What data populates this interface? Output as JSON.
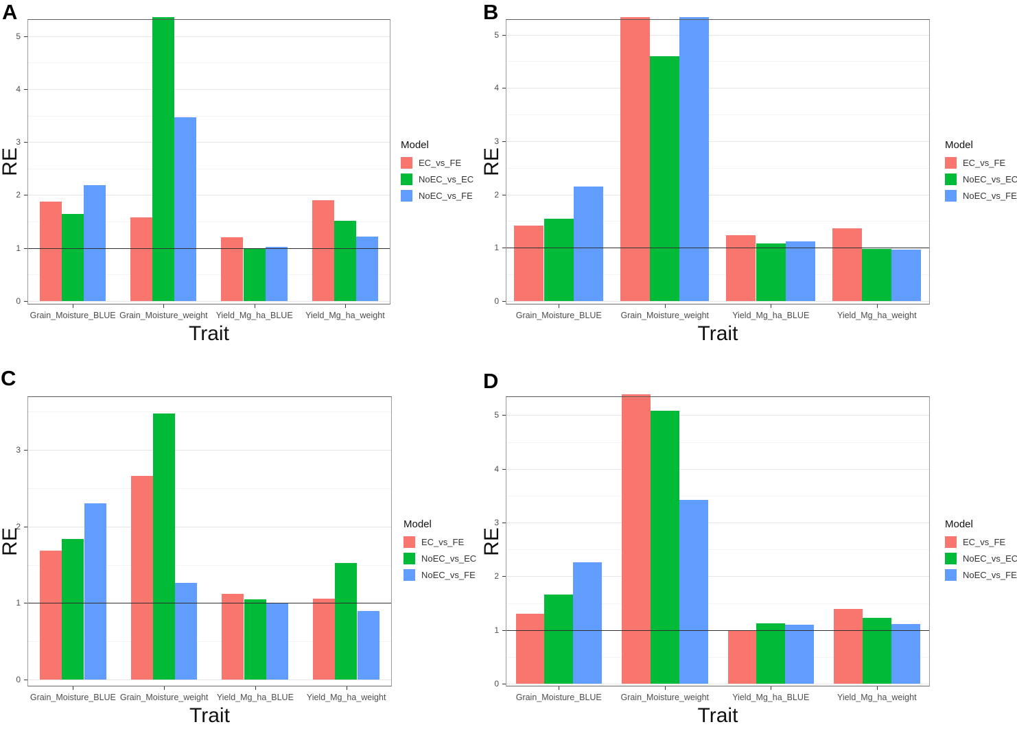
{
  "figure_type": "four-panel grouped bar figure",
  "panel_letters": [
    "A",
    "B",
    "C",
    "D"
  ],
  "categories": [
    "Grain_Moisture_BLUE",
    "Grain_Moisture_weight",
    "Yield_Mg_ha_BLUE",
    "Yield_Mg_ha_weight"
  ],
  "x_axis_title": "Trait",
  "y_axis_title": "RE",
  "legend_title": "Model",
  "reference_line_y": 1,
  "series_colors": {
    "EC_vs_FE": "#F8766D",
    "NoEC_vs_EC": "#00BA38",
    "NoEC_vs_FE": "#619CFF"
  },
  "chart_data": [
    {
      "type": "bar",
      "panel_label": "A",
      "xlabel": "Trait",
      "ylabel": "RE",
      "legend_title": "Model",
      "legend_position": "right",
      "grid": true,
      "ref_line": 1,
      "categories": [
        "Grain_Moisture_BLUE",
        "Grain_Moisture_weight",
        "Yield_Mg_ha_BLUE",
        "Yield_Mg_ha_weight"
      ],
      "yticks": [
        0,
        1,
        2,
        3,
        4,
        5
      ],
      "ylim": [
        0,
        5.32
      ],
      "series": [
        {
          "name": "EC_vs_FE",
          "color": "#F8766D",
          "values": [
            1.88,
            1.58,
            1.21,
            1.9
          ],
          "clipped": [
            false,
            false,
            false,
            false
          ]
        },
        {
          "name": "NoEC_vs_EC",
          "color": "#00BA38",
          "values": [
            1.64,
            5.5,
            1.0,
            1.52
          ],
          "clipped": [
            false,
            true,
            false,
            false
          ]
        },
        {
          "name": "NoEC_vs_FE",
          "color": "#619CFF",
          "values": [
            2.19,
            3.47,
            1.02,
            1.22
          ],
          "clipped": [
            false,
            false,
            false,
            false
          ]
        }
      ]
    },
    {
      "type": "bar",
      "panel_label": "B",
      "xlabel": "Trait",
      "ylabel": "RE",
      "legend_title": "Model",
      "legend_position": "right",
      "grid": true,
      "ref_line": 1,
      "categories": [
        "Grain_Moisture_BLUE",
        "Grain_Moisture_weight",
        "Yield_Mg_ha_BLUE",
        "Yield_Mg_ha_weight"
      ],
      "yticks": [
        0,
        1,
        2,
        3,
        4,
        5
      ],
      "ylim": [
        0,
        5.29
      ],
      "series": [
        {
          "name": "EC_vs_FE",
          "color": "#F8766D",
          "values": [
            1.42,
            5.5,
            1.23,
            1.36
          ],
          "clipped": [
            false,
            true,
            false,
            false
          ]
        },
        {
          "name": "NoEC_vs_EC",
          "color": "#00BA38",
          "values": [
            1.55,
            4.6,
            1.08,
            0.98
          ],
          "clipped": [
            false,
            false,
            false,
            false
          ]
        },
        {
          "name": "NoEC_vs_FE",
          "color": "#619CFF",
          "values": [
            2.15,
            5.5,
            1.12,
            0.96
          ],
          "clipped": [
            false,
            true,
            false,
            false
          ]
        }
      ]
    },
    {
      "type": "bar",
      "panel_label": "C",
      "xlabel": "Trait",
      "ylabel": "RE",
      "legend_title": "Model",
      "legend_position": "right",
      "grid": true,
      "ref_line": 1,
      "categories": [
        "Grain_Moisture_BLUE",
        "Grain_Moisture_weight",
        "Yield_Mg_ha_BLUE",
        "Yield_Mg_ha_weight"
      ],
      "yticks": [
        0,
        1,
        2,
        3
      ],
      "ylim": [
        0,
        3.7
      ],
      "series": [
        {
          "name": "EC_vs_FE",
          "color": "#F8766D",
          "values": [
            1.68,
            2.66,
            1.12,
            1.06
          ],
          "clipped": [
            false,
            false,
            false,
            false
          ]
        },
        {
          "name": "NoEC_vs_EC",
          "color": "#00BA38",
          "values": [
            1.84,
            3.48,
            1.05,
            1.52
          ],
          "clipped": [
            false,
            false,
            false,
            false
          ]
        },
        {
          "name": "NoEC_vs_FE",
          "color": "#619CFF",
          "values": [
            2.3,
            1.26,
            1.0,
            0.9
          ],
          "clipped": [
            false,
            false,
            false,
            false
          ]
        }
      ]
    },
    {
      "type": "bar",
      "panel_label": "D",
      "xlabel": "Trait",
      "ylabel": "RE",
      "legend_title": "Model",
      "legend_position": "right",
      "grid": true,
      "ref_line": 1,
      "categories": [
        "Grain_Moisture_BLUE",
        "Grain_Moisture_weight",
        "Yield_Mg_ha_BLUE",
        "Yield_Mg_ha_weight"
      ],
      "yticks": [
        0,
        1,
        2,
        3,
        4,
        5
      ],
      "ylim": [
        0,
        5.35
      ],
      "series": [
        {
          "name": "EC_vs_FE",
          "color": "#F8766D",
          "values": [
            1.3,
            5.5,
            1.0,
            1.39
          ],
          "clipped": [
            false,
            true,
            false,
            false
          ]
        },
        {
          "name": "NoEC_vs_EC",
          "color": "#00BA38",
          "values": [
            1.66,
            5.08,
            1.12,
            1.22
          ],
          "clipped": [
            false,
            false,
            false,
            false
          ]
        },
        {
          "name": "NoEC_vs_FE",
          "color": "#619CFF",
          "values": [
            2.26,
            3.42,
            1.1,
            1.11
          ],
          "clipped": [
            false,
            false,
            false,
            false
          ]
        }
      ]
    }
  ]
}
